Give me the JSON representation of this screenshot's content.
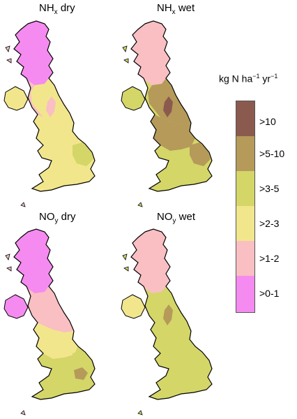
{
  "panels": [
    {
      "id": "nhx-dry",
      "species": "NH",
      "sub": "x",
      "type": "dry"
    },
    {
      "id": "nhx-wet",
      "species": "NH",
      "sub": "x",
      "type": "wet"
    },
    {
      "id": "noy-dry",
      "species": "NO",
      "sub": "y",
      "type": "dry"
    },
    {
      "id": "noy-wet",
      "species": "NO",
      "sub": "y",
      "type": "wet"
    }
  ],
  "legend": {
    "title_main": "kg N ha",
    "title_sup1": "−1",
    "title_mid": " yr",
    "title_sup2": "−1",
    "classes": [
      {
        "label": ">10",
        "color": "#8b5a4e"
      },
      {
        "label": ">5-10",
        "color": "#b59a5a"
      },
      {
        "label": ">3-5",
        "color": "#d4d668"
      },
      {
        "label": ">2-3",
        "color": "#f2e68c"
      },
      {
        "label": ">1-2",
        "color": "#f9bfc2"
      },
      {
        "label": ">0-1",
        "color": "#f58bf0"
      }
    ]
  }
}
